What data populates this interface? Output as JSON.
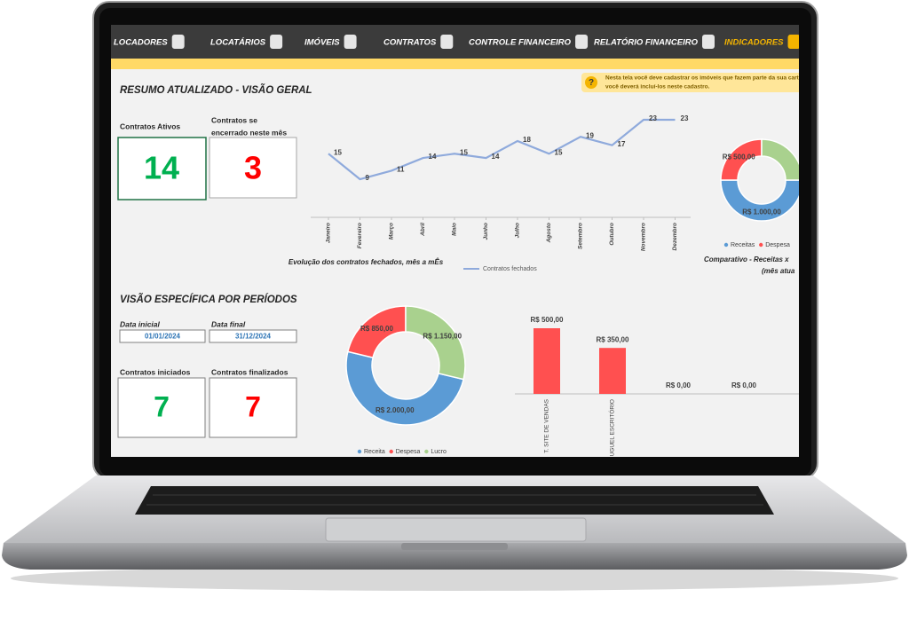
{
  "nav": {
    "items": [
      "LOCADORES",
      "LOCATÁRIOS",
      "IMÓVEIS",
      "CONTRATOS",
      "CONTROLE FINANCEIRO",
      "RELATÓRIO FINANCEIRO",
      "INDICADORES"
    ],
    "active": 6
  },
  "notice": [
    "Nesta tela você deve cadastrar os imóveis que fazem parte da sua carte",
    "você deverá incluí-los neste cadastro."
  ],
  "overview": {
    "title": "RESUMO ATUALIZADO - VISÃO GERAL",
    "active_contracts": {
      "label": [
        "Contratos Ativos"
      ],
      "value": 14
    },
    "ending_contracts": {
      "label": [
        "Contratos se",
        "encerrado neste mês"
      ],
      "value": 3
    }
  },
  "periods": {
    "title": "VISÃO ESPECÍFICA POR PERÍODOS",
    "start": {
      "label": "Data inicial",
      "value": "01/01/2024"
    },
    "end": {
      "label": "Data final",
      "value": "31/12/2024"
    },
    "started": {
      "label": "Contratos iniciados",
      "value": 7
    },
    "finished": {
      "label": "Contratos finalizados",
      "value": 7
    }
  },
  "chart_data": [
    {
      "type": "line",
      "title": "Evolução dos contratos fechados, mês a mÊs",
      "categories": [
        "Janeiro",
        "Fevereiro",
        "Março",
        "Abril",
        "Maio",
        "Junho",
        "Julho",
        "Agosto",
        "Setembro",
        "Outubro",
        "Novembro",
        "Dezembro"
      ],
      "series": [
        {
          "name": "Contratos fechados",
          "color": "#8faadc",
          "values": [
            15,
            9,
            11,
            14,
            15,
            14,
            18,
            15,
            19,
            17,
            23,
            23
          ]
        }
      ]
    },
    {
      "type": "donut",
      "title": [
        "Comparativo - Receitas x",
        "(mês atua"
      ],
      "categories": [
        "Receitas",
        "Despesa",
        null
      ],
      "values": [
        1000,
        500,
        500
      ],
      "value_labels": [
        "R$ 1.000,00",
        "R$ 500,00",
        null
      ],
      "colors": [
        "#5b9bd5",
        "#ff5050",
        "#a9d18e"
      ]
    },
    {
      "type": "donut",
      "categories": [
        "Receita",
        "Despesa",
        "Lucro"
      ],
      "values": [
        2000,
        850,
        1150
      ],
      "value_labels": [
        "R$ 2.000,00",
        "R$ 850,00",
        "R$ 1.150,00"
      ],
      "colors": [
        "#5b9bd5",
        "#ff5050",
        "#a9d18e"
      ]
    },
    {
      "type": "bar",
      "categories": [
        "T. SITE DE VENDAS",
        "UGUEL ESCRITÓRIO",
        null,
        null
      ],
      "values": [
        500,
        350,
        0,
        0
      ],
      "value_labels": [
        "R$ 500,00",
        "R$ 350,00",
        "R$ 0,00",
        "R$ 0,00"
      ],
      "color": "#ff5050"
    }
  ]
}
